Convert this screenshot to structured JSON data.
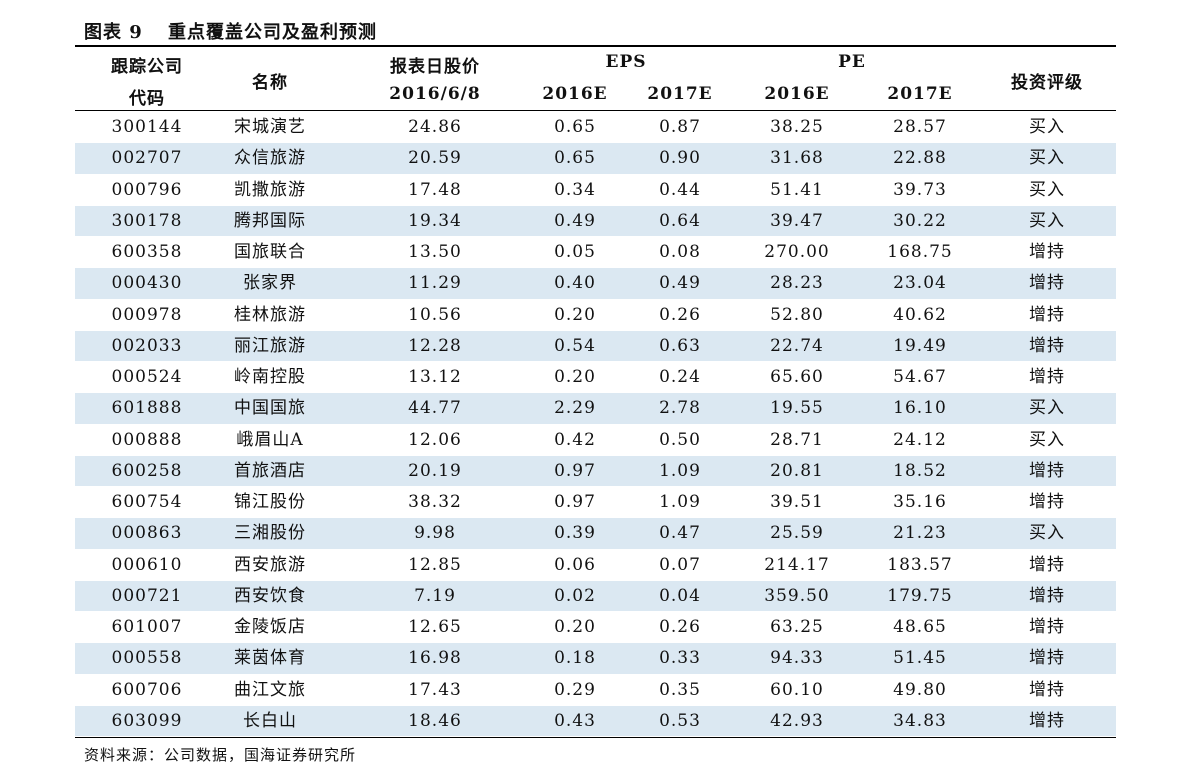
{
  "title": {
    "label": "图表 9",
    "text": "重点覆盖公司及盈利预测"
  },
  "table": {
    "header": {
      "code": [
        "跟踪公司",
        "代码"
      ],
      "name": "名称",
      "price": [
        "报表日股价",
        "2016/6/8"
      ],
      "eps": {
        "label": "EPS",
        "years": [
          "2016E",
          "2017E"
        ]
      },
      "pe": {
        "label": "PE",
        "years": [
          "2016E",
          "2017E"
        ]
      },
      "rating": "投资评级"
    },
    "rows": [
      [
        "300144",
        "宋城演艺",
        "24.86",
        "0.65",
        "0.87",
        "38.25",
        "28.57",
        "买入"
      ],
      [
        "002707",
        "众信旅游",
        "20.59",
        "0.65",
        "0.90",
        "31.68",
        "22.88",
        "买入"
      ],
      [
        "000796",
        "凯撒旅游",
        "17.48",
        "0.34",
        "0.44",
        "51.41",
        "39.73",
        "买入"
      ],
      [
        "300178",
        "腾邦国际",
        "19.34",
        "0.49",
        "0.64",
        "39.47",
        "30.22",
        "买入"
      ],
      [
        "600358",
        "国旅联合",
        "13.50",
        "0.05",
        "0.08",
        "270.00",
        "168.75",
        "增持"
      ],
      [
        "000430",
        "张家界",
        "11.29",
        "0.40",
        "0.49",
        "28.23",
        "23.04",
        "增持"
      ],
      [
        "000978",
        "桂林旅游",
        "10.56",
        "0.20",
        "0.26",
        "52.80",
        "40.62",
        "增持"
      ],
      [
        "002033",
        "丽江旅游",
        "12.28",
        "0.54",
        "0.63",
        "22.74",
        "19.49",
        "增持"
      ],
      [
        "000524",
        "岭南控股",
        "13.12",
        "0.20",
        "0.24",
        "65.60",
        "54.67",
        "增持"
      ],
      [
        "601888",
        "中国国旅",
        "44.77",
        "2.29",
        "2.78",
        "19.55",
        "16.10",
        "买入"
      ],
      [
        "000888",
        "峨眉山A",
        "12.06",
        "0.42",
        "0.50",
        "28.71",
        "24.12",
        "买入"
      ],
      [
        "600258",
        "首旅酒店",
        "20.19",
        "0.97",
        "1.09",
        "20.81",
        "18.52",
        "增持"
      ],
      [
        "600754",
        "锦江股份",
        "38.32",
        "0.97",
        "1.09",
        "39.51",
        "35.16",
        "增持"
      ],
      [
        "000863",
        "三湘股份",
        "9.98",
        "0.39",
        "0.47",
        "25.59",
        "21.23",
        "买入"
      ],
      [
        "000610",
        "西安旅游",
        "12.85",
        "0.06",
        "0.07",
        "214.17",
        "183.57",
        "增持"
      ],
      [
        "000721",
        "西安饮食",
        "7.19",
        "0.02",
        "0.04",
        "359.50",
        "179.75",
        "增持"
      ],
      [
        "601007",
        "金陵饭店",
        "12.65",
        "0.20",
        "0.26",
        "63.25",
        "48.65",
        "增持"
      ],
      [
        "000558",
        "莱茵体育",
        "16.98",
        "0.18",
        "0.33",
        "94.33",
        "51.45",
        "增持"
      ],
      [
        "600706",
        "曲江文旅",
        "17.43",
        "0.29",
        "0.35",
        "60.10",
        "49.80",
        "增持"
      ],
      [
        "603099",
        "长白山",
        "18.46",
        "0.43",
        "0.53",
        "42.93",
        "34.83",
        "增持"
      ]
    ]
  },
  "source": "资料来源：公司数据，国海证券研究所"
}
